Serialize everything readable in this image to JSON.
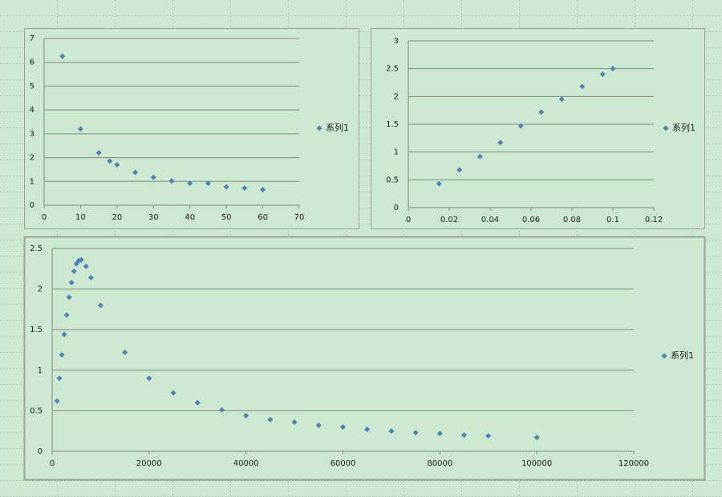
{
  "chart_data": [
    {
      "type": "scatter",
      "grid": true,
      "legend": "right",
      "xlim": [
        0,
        70
      ],
      "ylim": [
        0,
        7
      ],
      "xticks": [
        0,
        10,
        20,
        30,
        40,
        50,
        60,
        70
      ],
      "yticks": [
        0,
        1,
        2,
        3,
        4,
        5,
        6,
        7
      ],
      "series": [
        {
          "name": "系列1",
          "color": "#4f81bd",
          "x": [
            5,
            10,
            15,
            18,
            20,
            25,
            30,
            35,
            40,
            45,
            50,
            55,
            60
          ],
          "values": [
            6.25,
            3.2,
            2.2,
            1.85,
            1.7,
            1.38,
            1.17,
            1.02,
            0.92,
            0.92,
            0.77,
            0.72,
            0.65
          ]
        }
      ]
    },
    {
      "type": "scatter",
      "grid": true,
      "legend": "right",
      "xlim": [
        0,
        0.12
      ],
      "ylim": [
        0,
        3
      ],
      "xticks": [
        0,
        0.02,
        0.04,
        0.06,
        0.08,
        0.1,
        0.12
      ],
      "yticks": [
        0,
        0.5,
        1,
        1.5,
        2,
        2.5,
        3
      ],
      "series": [
        {
          "name": "系列1",
          "color": "#4f81bd",
          "x": [
            0.015,
            0.025,
            0.035,
            0.045,
            0.055,
            0.065,
            0.075,
            0.085,
            0.095,
            0.1
          ],
          "values": [
            0.43,
            0.68,
            0.92,
            1.17,
            1.47,
            1.72,
            1.95,
            2.18,
            2.4,
            2.5
          ]
        }
      ]
    },
    {
      "type": "scatter",
      "grid": true,
      "legend": "right",
      "xlim": [
        0,
        120000
      ],
      "ylim": [
        0,
        2.5
      ],
      "xticks": [
        0,
        20000,
        40000,
        60000,
        80000,
        100000,
        120000
      ],
      "yticks": [
        0,
        0.5,
        1,
        1.5,
        2,
        2.5
      ],
      "series": [
        {
          "name": "系列1",
          "color": "#4f81bd",
          "x": [
            1000,
            1500,
            2000,
            2500,
            3000,
            3500,
            4000,
            4500,
            5000,
            5500,
            6000,
            7000,
            8000,
            10000,
            15000,
            20000,
            25000,
            30000,
            35000,
            40000,
            45000,
            50000,
            55000,
            60000,
            65000,
            70000,
            75000,
            80000,
            85000,
            90000,
            100000
          ],
          "values": [
            0.62,
            0.9,
            1.19,
            1.44,
            1.68,
            1.9,
            2.08,
            2.22,
            2.31,
            2.35,
            2.36,
            2.28,
            2.14,
            1.8,
            1.22,
            0.9,
            0.72,
            0.6,
            0.51,
            0.44,
            0.39,
            0.36,
            0.32,
            0.3,
            0.27,
            0.25,
            0.23,
            0.22,
            0.2,
            0.19,
            0.17
          ]
        }
      ]
    }
  ]
}
